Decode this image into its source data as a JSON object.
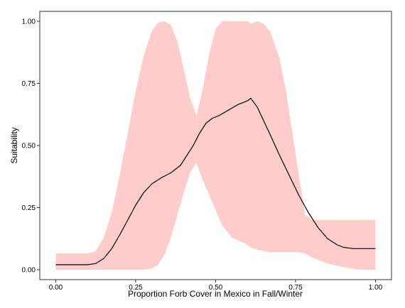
{
  "chart_data": {
    "type": "line",
    "title": "",
    "xlabel": "Proportion Forb Cover in Mexico in Fall/Winter",
    "ylabel": "Suitability",
    "xlim": [
      -0.05,
      1.05
    ],
    "ylim": [
      -0.04,
      1.04
    ],
    "x_ticks": [
      0.0,
      0.25,
      0.5,
      0.75,
      1.0
    ],
    "x_tick_labels": [
      "0.00",
      "0.25",
      "0.50",
      "0.75",
      "1.00"
    ],
    "y_ticks": [
      0.0,
      0.25,
      0.5,
      0.75,
      1.0
    ],
    "y_tick_labels": [
      "0.00",
      "0.25",
      "0.50",
      "0.75",
      "1.00"
    ],
    "grid": false,
    "colors": {
      "line": "#000000",
      "band": "#ffcccc",
      "frame": "#333333"
    },
    "series": [
      {
        "kind": "line",
        "x": [
          0.0,
          0.05,
          0.1,
          0.125,
          0.15,
          0.175,
          0.2,
          0.225,
          0.25,
          0.275,
          0.3,
          0.33,
          0.36,
          0.39,
          0.41,
          0.43,
          0.45,
          0.47,
          0.49,
          0.51,
          0.53,
          0.55,
          0.57,
          0.6,
          0.61,
          0.63,
          0.65,
          0.67,
          0.7,
          0.73,
          0.76,
          0.79,
          0.82,
          0.85,
          0.88,
          0.9,
          0.93,
          0.96,
          1.0
        ],
        "y": [
          0.02,
          0.02,
          0.02,
          0.025,
          0.045,
          0.085,
          0.14,
          0.2,
          0.26,
          0.31,
          0.345,
          0.37,
          0.39,
          0.42,
          0.46,
          0.5,
          0.55,
          0.59,
          0.61,
          0.62,
          0.635,
          0.65,
          0.665,
          0.68,
          0.69,
          0.655,
          0.6,
          0.545,
          0.46,
          0.38,
          0.3,
          0.23,
          0.17,
          0.125,
          0.1,
          0.09,
          0.085,
          0.085,
          0.085
        ]
      },
      {
        "kind": "band",
        "x": [
          0.0,
          0.1,
          0.125,
          0.15,
          0.175,
          0.2,
          0.225,
          0.25,
          0.275,
          0.3,
          0.32,
          0.34,
          0.36,
          0.38,
          0.4,
          0.42,
          0.44,
          0.46,
          0.48,
          0.5,
          0.52,
          0.55,
          0.6,
          0.61,
          0.63,
          0.65,
          0.67,
          0.7,
          0.72,
          0.74,
          0.76,
          0.78,
          0.8,
          0.85,
          0.9,
          0.95,
          1.0
        ],
        "upper": [
          0.065,
          0.065,
          0.075,
          0.13,
          0.23,
          0.38,
          0.55,
          0.72,
          0.86,
          0.96,
          0.995,
          1.0,
          0.985,
          0.92,
          0.81,
          0.69,
          0.62,
          0.73,
          0.87,
          0.97,
          1.0,
          1.0,
          1.0,
          0.99,
          1.0,
          0.99,
          0.96,
          0.85,
          0.72,
          0.55,
          0.38,
          0.22,
          0.2,
          0.2,
          0.2,
          0.2,
          0.2
        ],
        "lower": [
          0.0,
          0.0,
          0.0,
          0.0,
          0.0,
          0.0,
          0.0,
          0.0,
          0.0,
          0.005,
          0.02,
          0.06,
          0.13,
          0.22,
          0.31,
          0.39,
          0.43,
          0.36,
          0.3,
          0.24,
          0.18,
          0.13,
          0.1,
          0.09,
          0.08,
          0.075,
          0.07,
          0.07,
          0.07,
          0.07,
          0.07,
          0.065,
          0.05,
          0.025,
          0.01,
          0.0,
          0.0
        ]
      }
    ]
  }
}
